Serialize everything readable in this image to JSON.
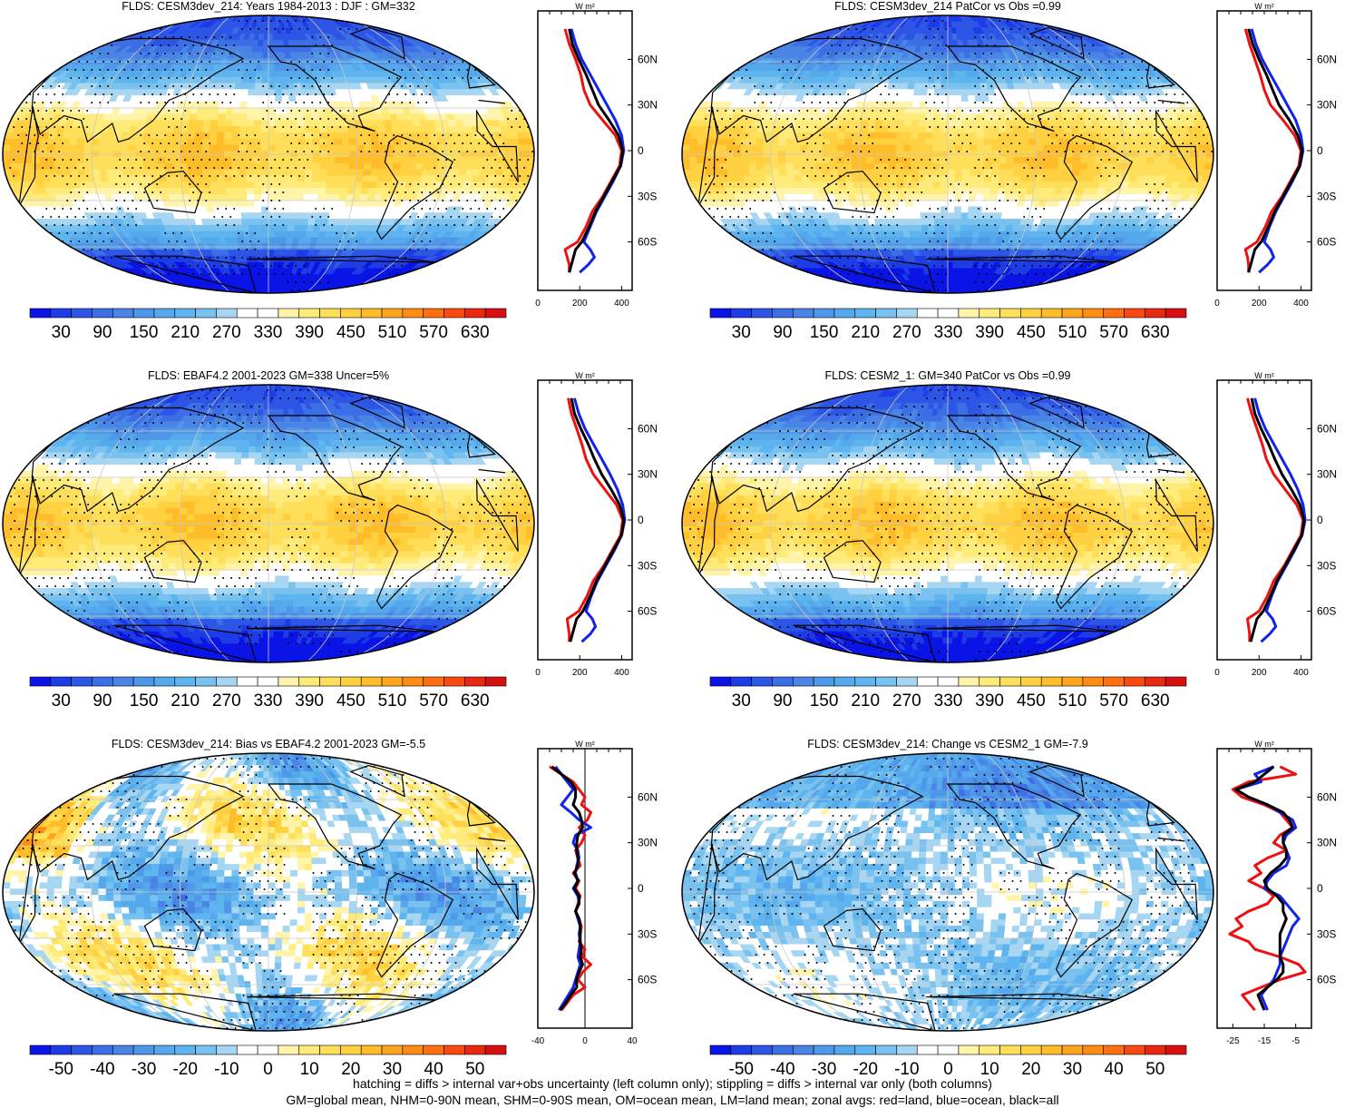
{
  "footer": {
    "line1": "hatching = diffs > internal var+obs uncertainty (left column only); stippling = diffs > internal var only (both columns)",
    "line2": "GM=global mean, NHM=0-90N mean, SHM=0-90S mean, OM=ocean mean, LM=land mean; zonal avgs: red=land, blue=ocean, black=all"
  },
  "colors": {
    "land_zonal": "#ee1111",
    "ocean_zonal": "#1122ee",
    "all_zonal": "#000000",
    "missing_land": "#c8c8c8",
    "palette": [
      "#0a14e6",
      "#1e3ce6",
      "#2d55e6",
      "#3c6ee6",
      "#4a85e6",
      "#4f97e8",
      "#56a8ec",
      "#5db4ee",
      "#79c2ef",
      "#a6d6f2",
      "#ffffff",
      "#ffffff",
      "#fff4aa",
      "#ffeb7a",
      "#ffdf5a",
      "#ffd040",
      "#ffbd2a",
      "#ffa51c",
      "#ff8c14",
      "#ff6e10",
      "#f84a10",
      "#e82810",
      "#d61010"
    ]
  },
  "zonal_axes": {
    "title": "W m²",
    "lat_ticks": [
      "60N",
      "30N",
      "0",
      "30S",
      "60S"
    ]
  },
  "chart_data": [
    {
      "type": "heatmap",
      "title": "FLDS: CESM3dev_214: Years 1984-2013 : DJF : GM=332",
      "colorbar_labels": [
        "30",
        "90",
        "150",
        "210",
        "270",
        "330",
        "390",
        "450",
        "510",
        "570",
        "630"
      ],
      "field_range": [
        0,
        660
      ],
      "field": "abs",
      "zonal": {
        "xticks": [
          "0",
          "200",
          "400"
        ],
        "xlim": [
          0,
          450
        ],
        "type": "line",
        "lat": [
          80,
          70,
          60,
          50,
          40,
          30,
          20,
          10,
          0,
          -10,
          -20,
          -30,
          -40,
          -50,
          -60,
          -65,
          -70,
          -75,
          -80
        ],
        "land": [
          130,
          150,
          180,
          205,
          220,
          250,
          310,
          370,
          400,
          390,
          350,
          310,
          260,
          230,
          190,
          130,
          140,
          150,
          150
        ],
        "ocean": [
          160,
          180,
          210,
          250,
          290,
          330,
          370,
          400,
          410,
          395,
          360,
          320,
          280,
          250,
          220,
          250,
          270,
          240,
          200
        ],
        "all": [
          150,
          165,
          195,
          230,
          260,
          290,
          340,
          385,
          405,
          395,
          355,
          315,
          275,
          245,
          210,
          180,
          170,
          160,
          150
        ]
      }
    },
    {
      "type": "heatmap",
      "title": "FLDS: CESM3dev_214 PatCor vs Obs =0.99",
      "colorbar_labels": [
        "30",
        "90",
        "150",
        "210",
        "270",
        "330",
        "390",
        "450",
        "510",
        "570",
        "630"
      ],
      "field_range": [
        0,
        660
      ],
      "field": "abs",
      "zonal": {
        "xticks": [
          "0",
          "200",
          "400"
        ],
        "xlim": [
          0,
          450
        ],
        "type": "line",
        "lat": [
          80,
          70,
          60,
          50,
          40,
          30,
          20,
          10,
          0,
          -10,
          -20,
          -30,
          -40,
          -50,
          -60,
          -65,
          -70,
          -75,
          -80
        ],
        "land": [
          135,
          155,
          180,
          205,
          225,
          255,
          315,
          370,
          400,
          390,
          350,
          310,
          260,
          230,
          190,
          135,
          145,
          150,
          150
        ],
        "ocean": [
          165,
          185,
          215,
          255,
          295,
          335,
          375,
          400,
          410,
          395,
          360,
          320,
          280,
          250,
          225,
          255,
          270,
          240,
          200
        ],
        "all": [
          150,
          170,
          200,
          235,
          265,
          295,
          345,
          385,
          405,
          395,
          355,
          315,
          275,
          245,
          210,
          180,
          170,
          160,
          150
        ]
      }
    },
    {
      "type": "heatmap",
      "title": "FLDS: EBAF4.2 2001-2023 GM=338 Uncer=5%",
      "colorbar_labels": [
        "30",
        "90",
        "150",
        "210",
        "270",
        "330",
        "390",
        "450",
        "510",
        "570",
        "630"
      ],
      "field_range": [
        0,
        660
      ],
      "field": "abs",
      "zonal": {
        "xticks": [
          "0",
          "200",
          "400"
        ],
        "xlim": [
          0,
          450
        ],
        "type": "line",
        "lat": [
          80,
          70,
          60,
          50,
          40,
          30,
          20,
          10,
          0,
          -10,
          -20,
          -30,
          -40,
          -50,
          -60,
          -65,
          -70,
          -75,
          -80
        ],
        "land": [
          145,
          160,
          185,
          210,
          230,
          265,
          320,
          375,
          405,
          395,
          355,
          315,
          265,
          235,
          195,
          140,
          145,
          150,
          150
        ],
        "ocean": [
          175,
          195,
          225,
          265,
          305,
          345,
          380,
          405,
          415,
          400,
          365,
          325,
          285,
          255,
          230,
          260,
          275,
          250,
          210
        ],
        "all": [
          160,
          175,
          205,
          240,
          270,
          305,
          350,
          390,
          410,
          400,
          360,
          320,
          280,
          250,
          215,
          185,
          175,
          165,
          155
        ]
      }
    },
    {
      "type": "heatmap",
      "title": "FLDS: CESM2_1: GM=340 PatCor vs Obs =0.99",
      "colorbar_labels": [
        "30",
        "90",
        "150",
        "210",
        "270",
        "330",
        "390",
        "450",
        "510",
        "570",
        "630"
      ],
      "field_range": [
        0,
        660
      ],
      "field": "abs",
      "zonal": {
        "xticks": [
          "0",
          "200",
          "400"
        ],
        "xlim": [
          0,
          450
        ],
        "type": "line",
        "lat": [
          80,
          70,
          60,
          50,
          40,
          30,
          20,
          10,
          0,
          -10,
          -20,
          -30,
          -40,
          -50,
          -60,
          -65,
          -70,
          -75,
          -80
        ],
        "land": [
          145,
          165,
          190,
          215,
          235,
          270,
          325,
          380,
          410,
          400,
          360,
          320,
          270,
          240,
          200,
          145,
          150,
          155,
          155
        ],
        "ocean": [
          180,
          200,
          230,
          270,
          310,
          350,
          385,
          410,
          420,
          405,
          370,
          330,
          290,
          260,
          235,
          265,
          280,
          250,
          210
        ],
        "all": [
          165,
          180,
          210,
          245,
          275,
          310,
          355,
          395,
          415,
          405,
          365,
          325,
          285,
          255,
          220,
          190,
          180,
          170,
          160
        ]
      }
    },
    {
      "type": "heatmap",
      "title": "FLDS: CESM3dev_214: Bias vs EBAF4.2 2001-2023 GM=-5.5",
      "colorbar_labels": [
        "-50",
        "-40",
        "-30",
        "-20",
        "-10",
        "0",
        "10",
        "20",
        "30",
        "40",
        "50"
      ],
      "field_range": [
        -55,
        55
      ],
      "field": "bias",
      "zonal": {
        "xticks": [
          "-40",
          "0",
          "40"
        ],
        "xlim": [
          -40,
          40
        ],
        "type": "line",
        "lat": [
          80,
          75,
          70,
          65,
          60,
          55,
          50,
          45,
          40,
          35,
          30,
          25,
          20,
          15,
          10,
          5,
          0,
          -5,
          -10,
          -15,
          -20,
          -25,
          -30,
          -35,
          -40,
          -45,
          -50,
          -55,
          -60,
          -65,
          -70,
          -75,
          -80
        ],
        "land": [
          -30,
          -20,
          -10,
          -5,
          0,
          -3,
          5,
          2,
          -5,
          0,
          -3,
          -8,
          -6,
          -4,
          -10,
          -5,
          -8,
          -4,
          -6,
          -8,
          -5,
          -3,
          -4,
          -5,
          0,
          -2,
          5,
          -2,
          -6,
          0,
          -10,
          -15,
          -20
        ],
        "ocean": [
          -25,
          -20,
          -15,
          -10,
          -15,
          -20,
          -12,
          -5,
          5,
          -8,
          -10,
          -6,
          -5,
          -7,
          -8,
          -6,
          -10,
          -6,
          -5,
          -8,
          -6,
          -4,
          -5,
          -4,
          -5,
          -6,
          -4,
          -6,
          -8,
          -10,
          -14,
          -18,
          -22
        ],
        "all": [
          -28,
          -20,
          -12,
          -8,
          -8,
          -10,
          -5,
          -3,
          -2,
          -6,
          -7,
          -7,
          -6,
          -6,
          -9,
          -6,
          -9,
          -5,
          -5,
          -8,
          -5,
          -4,
          -4,
          -4,
          -3,
          -4,
          -2,
          -5,
          -7,
          -7,
          -12,
          -16,
          -21
        ]
      }
    },
    {
      "type": "heatmap",
      "title": "FLDS: CESM3dev_214: Change vs CESM2_1 GM=-7.9",
      "colorbar_labels": [
        "-50",
        "-40",
        "-30",
        "-20",
        "-10",
        "0",
        "10",
        "20",
        "30",
        "40",
        "50"
      ],
      "field_range": [
        -55,
        55
      ],
      "field": "change",
      "zonal": {
        "xticks": [
          "-25",
          "-15",
          "-5"
        ],
        "xlim": [
          -30,
          0
        ],
        "type": "line",
        "lat": [
          80,
          75,
          70,
          65,
          60,
          55,
          50,
          45,
          40,
          35,
          30,
          25,
          20,
          15,
          10,
          5,
          0,
          -5,
          -10,
          -15,
          -20,
          -25,
          -30,
          -35,
          -40,
          -45,
          -50,
          -55,
          -60,
          -65,
          -70,
          -75,
          -80
        ],
        "land": [
          -10,
          -5,
          -20,
          -25,
          -22,
          -15,
          -10,
          -8,
          -6,
          -10,
          -12,
          -8,
          -14,
          -18,
          -16,
          -20,
          -15,
          -12,
          -14,
          -20,
          -24,
          -22,
          -26,
          -20,
          -18,
          -10,
          -4,
          -2,
          -10,
          -16,
          -22,
          -20,
          -18
        ],
        "ocean": [
          -12,
          -18,
          -16,
          -24,
          -20,
          -14,
          -10,
          -6,
          -5,
          -8,
          -9,
          -8,
          -7,
          -8,
          -12,
          -14,
          -15,
          -10,
          -8,
          -6,
          -4,
          -6,
          -7,
          -8,
          -9,
          -10,
          -10,
          -11,
          -12,
          -14,
          -16,
          -15,
          -14
        ],
        "all": [
          -12,
          -15,
          -18,
          -24,
          -20,
          -14,
          -9,
          -7,
          -6,
          -9,
          -9,
          -8,
          -8,
          -10,
          -13,
          -15,
          -14,
          -11,
          -9,
          -9,
          -8,
          -9,
          -10,
          -10,
          -10,
          -10,
          -9,
          -9,
          -11,
          -14,
          -17,
          -16,
          -15
        ]
      }
    }
  ]
}
